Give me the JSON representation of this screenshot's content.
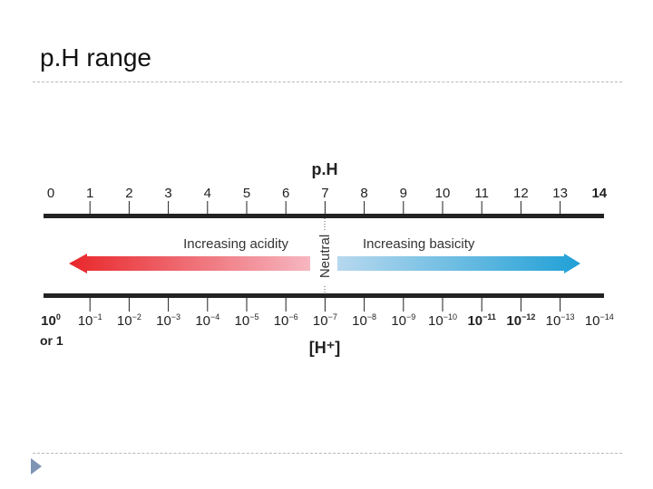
{
  "slide": {
    "title": "p.H range",
    "nav_icon": "triangle-right-icon"
  },
  "diagram": {
    "ph_title": "p.H",
    "h_title": "[H⁺]",
    "ph_values": [
      0,
      1,
      2,
      3,
      4,
      5,
      6,
      7,
      8,
      9,
      10,
      11,
      12,
      13,
      14
    ],
    "h_exponents": [
      "0",
      "−1",
      "−2",
      "−3",
      "−4",
      "−5",
      "−6",
      "−7",
      "−8",
      "−9",
      "−10",
      "−11",
      "−12",
      "−13",
      "−14"
    ],
    "h_base": "10",
    "h_first_extra": "or 1",
    "neutral_label": "Neutral",
    "acid_label": "Increasing acidity",
    "base_label": "Increasing basicity",
    "colors": {
      "acid_strong": "#e8262a",
      "acid_light": "#f6b6c0",
      "base_light": "#b7d8ee",
      "base_strong": "#1fa0d6",
      "axis": "#222222"
    }
  }
}
